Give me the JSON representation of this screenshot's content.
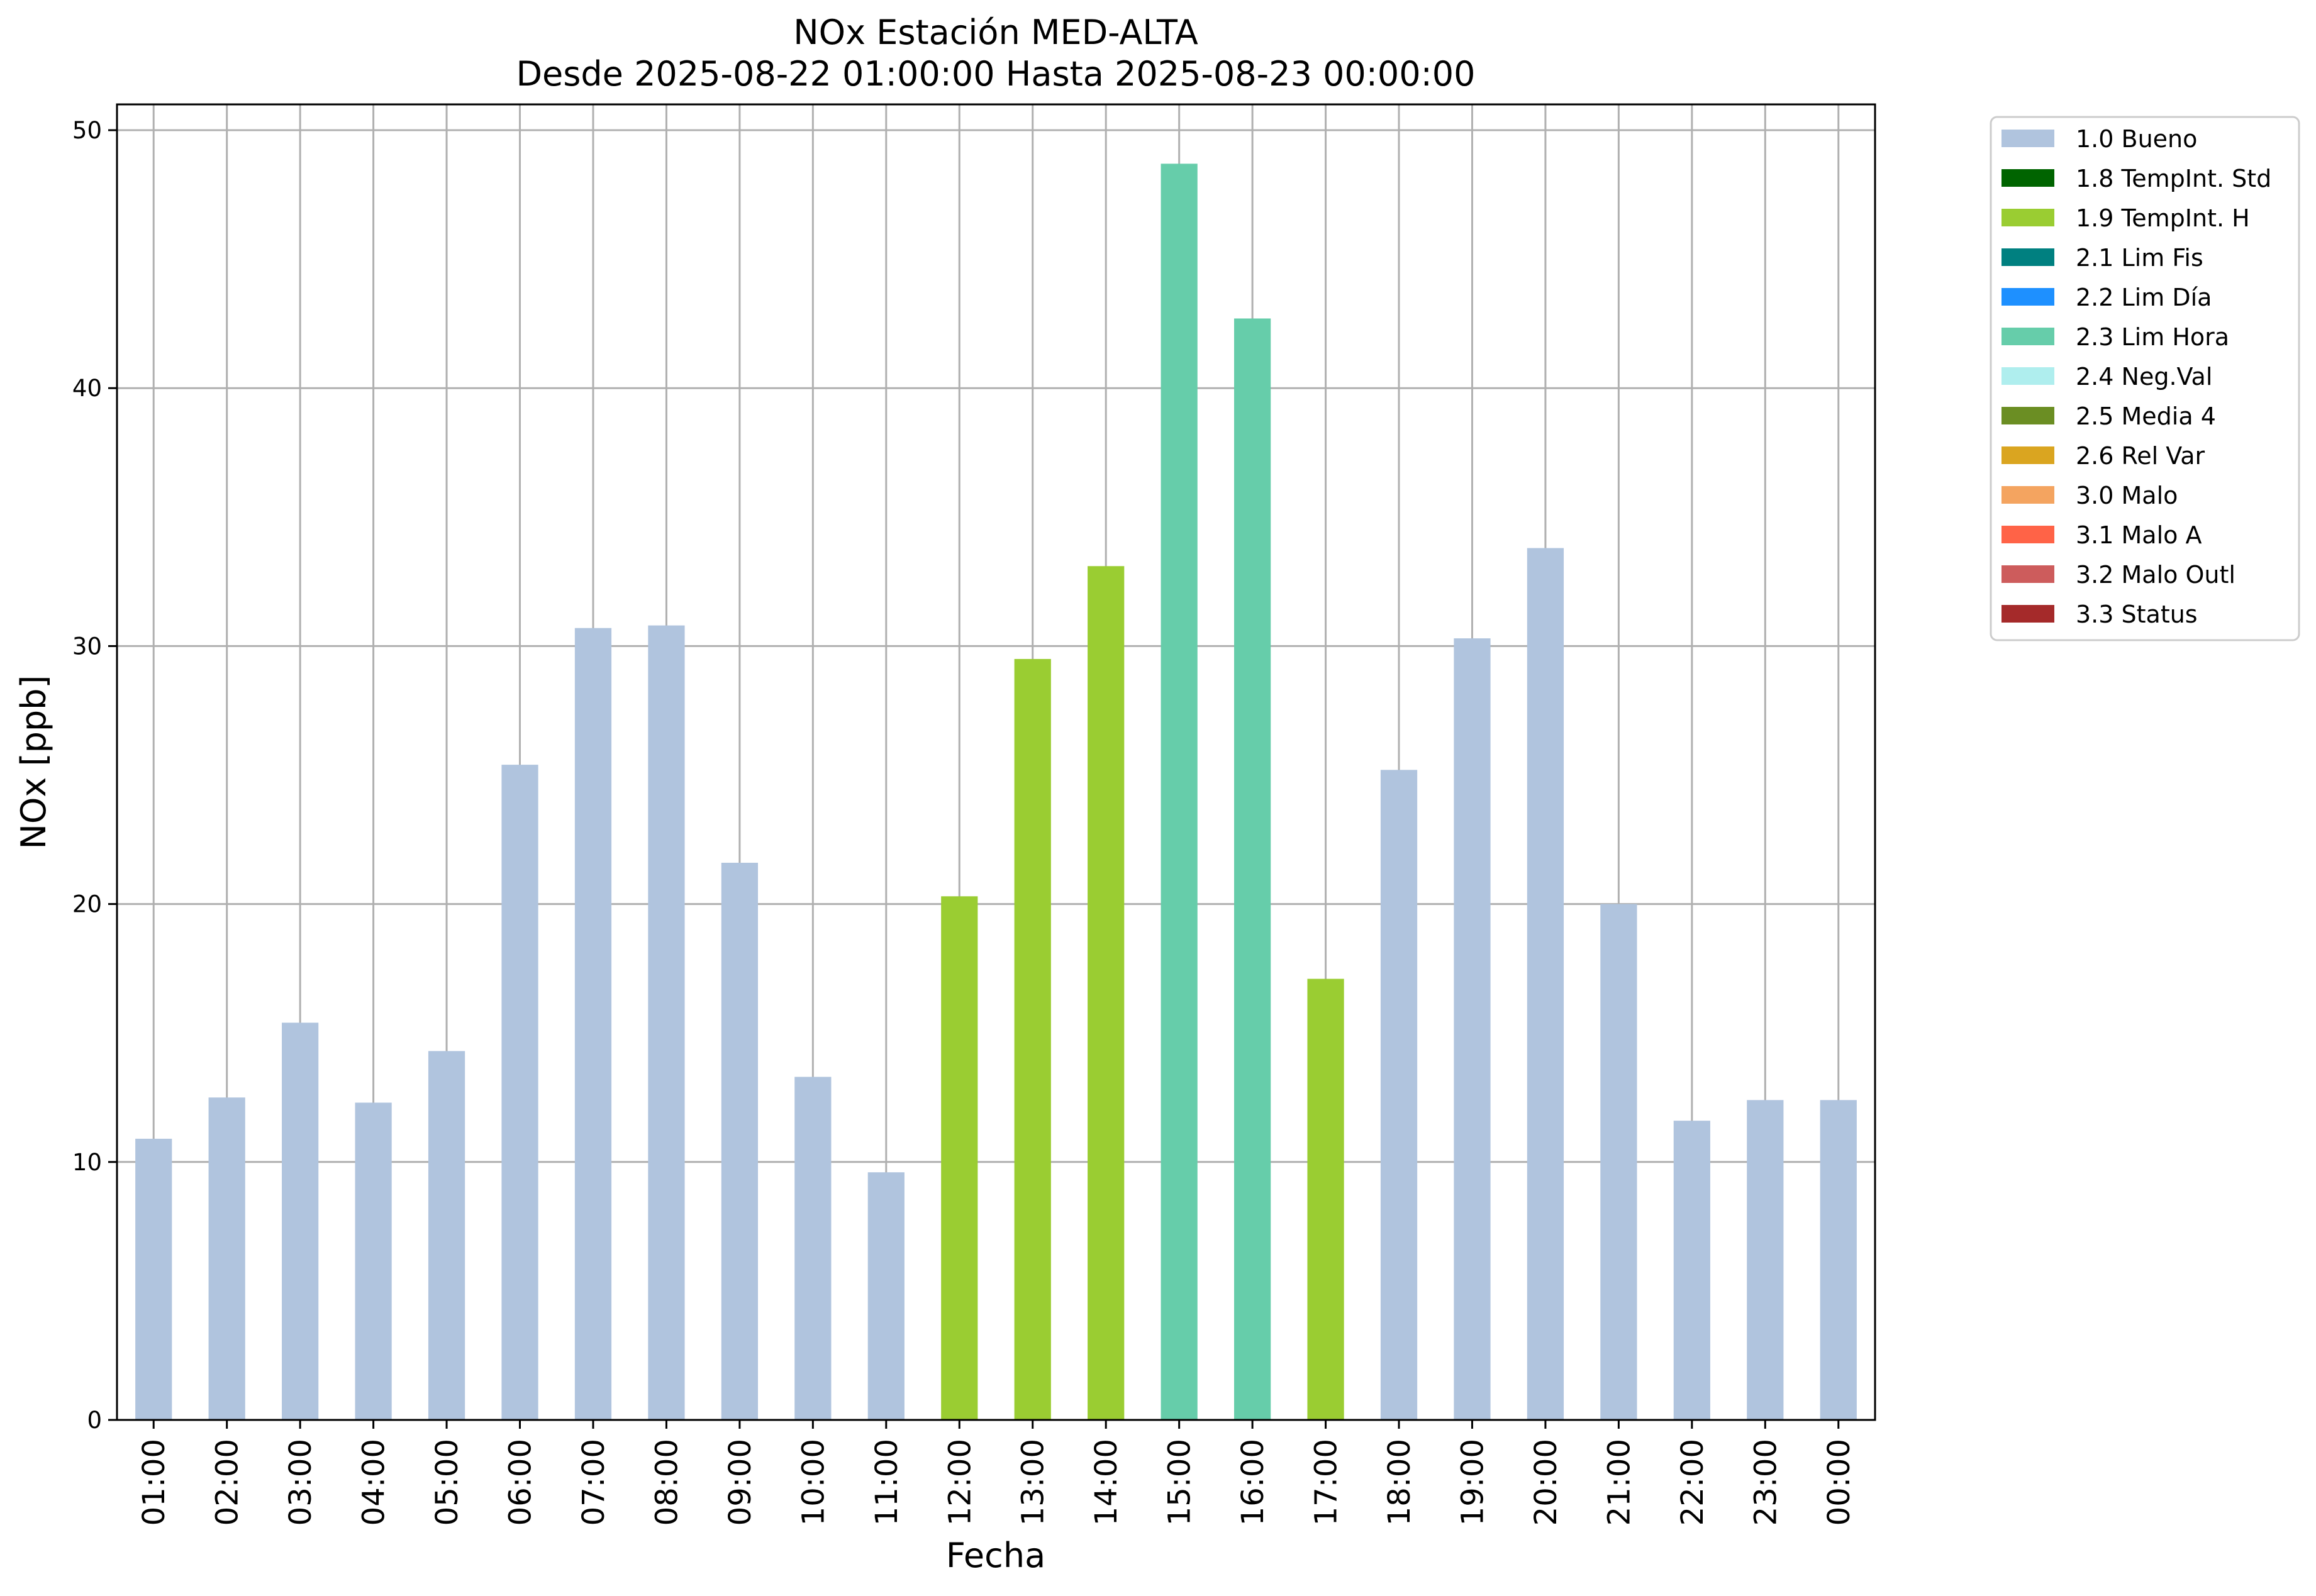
{
  "chart_data": {
    "type": "bar",
    "title": "NOx Estación MED-ALTA",
    "subtitle": "Desde 2025-08-22 01:00:00 Hasta 2025-08-23 00:00:00",
    "xlabel": "Fecha",
    "ylabel": "NOx [ppb]",
    "ylim": [
      0,
      51
    ],
    "yticks": [
      0,
      10,
      20,
      30,
      40,
      50
    ],
    "grid": true,
    "legend_position": "outside-top-right",
    "categories": [
      "01:00",
      "02:00",
      "03:00",
      "04:00",
      "05:00",
      "06:00",
      "07:00",
      "08:00",
      "09:00",
      "10:00",
      "11:00",
      "12:00",
      "13:00",
      "14:00",
      "15:00",
      "16:00",
      "17:00",
      "18:00",
      "19:00",
      "20:00",
      "21:00",
      "22:00",
      "23:00",
      "00:00"
    ],
    "values": [
      10.9,
      12.5,
      15.4,
      12.3,
      14.3,
      25.4,
      30.7,
      30.8,
      21.6,
      13.3,
      9.6,
      20.3,
      29.5,
      33.1,
      48.7,
      42.7,
      17.1,
      25.2,
      30.3,
      33.8,
      20.0,
      11.6,
      12.4,
      12.4
    ],
    "flags": [
      "1.0 Bueno",
      "1.0 Bueno",
      "1.0 Bueno",
      "1.0 Bueno",
      "1.0 Bueno",
      "1.0 Bueno",
      "1.0 Bueno",
      "1.0 Bueno",
      "1.0 Bueno",
      "1.0 Bueno",
      "1.0 Bueno",
      "1.9 TempInt. H",
      "1.9 TempInt. H",
      "1.9 TempInt. H",
      "2.3 Lim Hora",
      "2.3 Lim Hora",
      "1.9 TempInt. H",
      "1.0 Bueno",
      "1.0 Bueno",
      "1.0 Bueno",
      "1.0 Bueno",
      "1.0 Bueno",
      "1.0 Bueno",
      "1.0 Bueno"
    ],
    "legend": [
      {
        "name": "1.0 Bueno",
        "color": "#b0c4de"
      },
      {
        "name": "1.8 TempInt. Std",
        "color": "#006400"
      },
      {
        "name": "1.9 TempInt. H",
        "color": "#9acd32"
      },
      {
        "name": "2.1 Lim Fis",
        "color": "#008080"
      },
      {
        "name": "2.2 Lim Día",
        "color": "#1e90ff"
      },
      {
        "name": "2.3 Lim Hora",
        "color": "#66cdaa"
      },
      {
        "name": "2.4 Neg.Val",
        "color": "#afeeee"
      },
      {
        "name": "2.5 Media 4",
        "color": "#6b8e23"
      },
      {
        "name": "2.6 Rel Var",
        "color": "#daa520"
      },
      {
        "name": "3.0 Malo",
        "color": "#f4a460"
      },
      {
        "name": "3.1 Malo A",
        "color": "#ff6347"
      },
      {
        "name": "3.2 Malo Outl",
        "color": "#cd5c5c"
      },
      {
        "name": "3.3 Status",
        "color": "#a52a2a"
      }
    ]
  }
}
